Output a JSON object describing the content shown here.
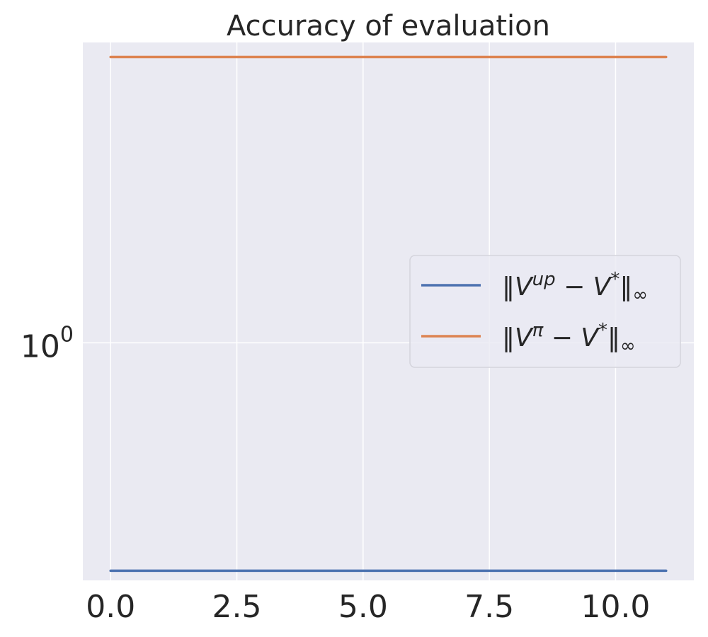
{
  "chart_data": {
    "type": "line",
    "title": "Accuracy of evaluation",
    "xlabel": "",
    "ylabel": "",
    "yscale": "log",
    "xlim": [
      -0.55,
      11.55
    ],
    "ylim": [
      0.425,
      2.95
    ],
    "xticks": [
      0.0,
      2.5,
      5.0,
      7.5,
      10.0
    ],
    "xtick_labels": [
      "0.0",
      "2.5",
      "5.0",
      "7.5",
      "10.0"
    ],
    "yticks": [
      1.0
    ],
    "ytick_labels": [
      {
        "base": "10",
        "exp": "0"
      }
    ],
    "grid": true,
    "background": "#eaeaf2",
    "legend": {
      "location": "center right",
      "entries": [
        {
          "main": "‖V",
          "sup1": "up",
          "mid": " − V",
          "sup2": "*",
          "end": "‖",
          "sub": "∞"
        },
        {
          "main": "‖V",
          "sup1": "π",
          "mid": " − V",
          "sup2": "*",
          "end": "‖",
          "sub": "∞"
        }
      ]
    },
    "series": [
      {
        "color": "#4c72b0",
        "x": [
          0,
          1,
          2,
          3,
          4,
          5,
          6,
          7,
          8,
          9,
          10,
          11
        ],
        "y": [
          0.44,
          0.44,
          0.44,
          0.44,
          0.44,
          0.44,
          0.44,
          0.44,
          0.44,
          0.44,
          0.44,
          0.44
        ]
      },
      {
        "color": "#dd8452",
        "x": [
          0,
          1,
          2,
          3,
          4,
          5,
          6,
          7,
          8,
          9,
          10,
          11
        ],
        "y": [
          2.8,
          2.8,
          2.8,
          2.8,
          2.8,
          2.8,
          2.8,
          2.8,
          2.8,
          2.8,
          2.8,
          2.8
        ]
      }
    ]
  }
}
